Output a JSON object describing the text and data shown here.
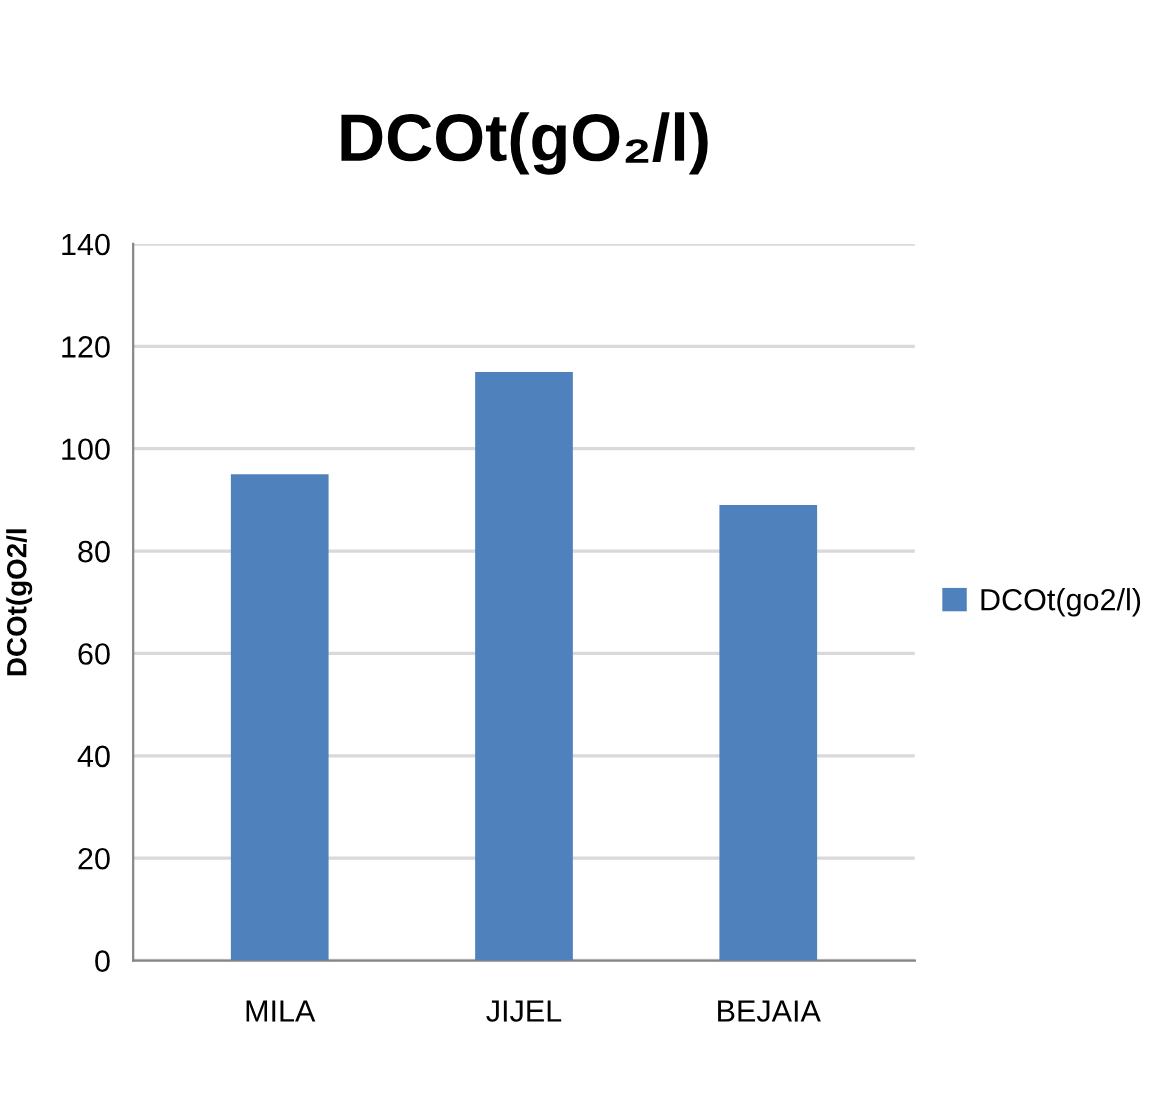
{
  "chart_data": {
    "type": "bar",
    "title": "DCOt(gO₂/l)",
    "ylabel": "DCOt(gO2/l",
    "categories": [
      "MILA",
      "JIJEL",
      "BEJAIA"
    ],
    "series": [
      {
        "name": "DCOt(go2/l)",
        "color": "#4f81bd",
        "values": [
          95,
          115,
          89
        ]
      }
    ],
    "ylim": [
      0,
      140
    ],
    "yticks": [
      0,
      20,
      40,
      60,
      80,
      100,
      120,
      140
    ],
    "grid": "y",
    "legend": "right"
  }
}
